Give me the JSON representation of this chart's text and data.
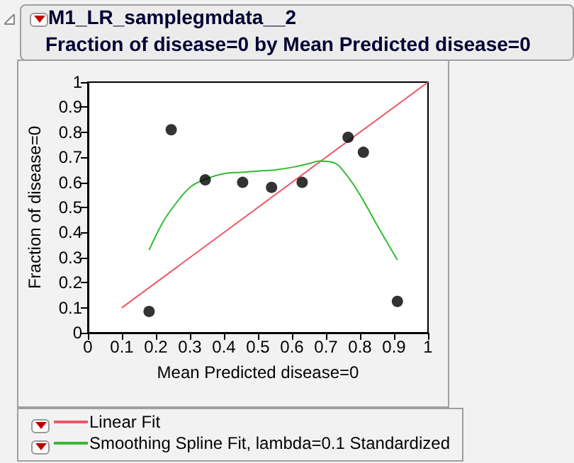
{
  "chart_data": {
    "type": "scatter",
    "title": "M1_LR_samplegmdata__2",
    "subtitle": "Fraction of disease=0 by Mean Predicted disease=0",
    "xlabel": "Mean Predicted disease=0",
    "ylabel": "Fraction of disease=0",
    "xlim": [
      0,
      1
    ],
    "ylim": [
      0,
      1
    ],
    "xticks": [
      0,
      0.1,
      0.2,
      0.3,
      0.4,
      0.5,
      0.6,
      0.7,
      0.8,
      0.9,
      1
    ],
    "yticks": [
      0,
      0.1,
      0.2,
      0.3,
      0.4,
      0.5,
      0.6,
      0.7,
      0.8,
      0.9,
      1
    ],
    "grid": false,
    "legend": "bottom",
    "series": [
      {
        "marker": "circle",
        "color": "#000000",
        "x": [
          0.18,
          0.245,
          0.345,
          0.455,
          0.54,
          0.63,
          0.765,
          0.81,
          0.91
        ],
        "values": [
          0.085,
          0.81,
          0.61,
          0.6,
          0.58,
          0.6,
          0.78,
          0.72,
          0.125
        ]
      },
      {
        "type": "line",
        "marker": "none",
        "name": "Linear Fit",
        "color": "#ee5566",
        "x": [
          0.1,
          1
        ],
        "values": [
          0.1,
          1
        ]
      },
      {
        "type": "line",
        "marker": "none",
        "name": "Smoothing Spline Fit, lambda=0.1 Standardized",
        "color": "#33bb33",
        "x": [
          0.18,
          0.22,
          0.25,
          0.3,
          0.35,
          0.4,
          0.45,
          0.5,
          0.55,
          0.6,
          0.65,
          0.68,
          0.72,
          0.76,
          0.8,
          0.85,
          0.91
        ],
        "values": [
          0.33,
          0.44,
          0.5,
          0.58,
          0.615,
          0.635,
          0.64,
          0.645,
          0.65,
          0.66,
          0.675,
          0.685,
          0.68,
          0.63,
          0.55,
          0.43,
          0.29
        ]
      }
    ]
  }
}
